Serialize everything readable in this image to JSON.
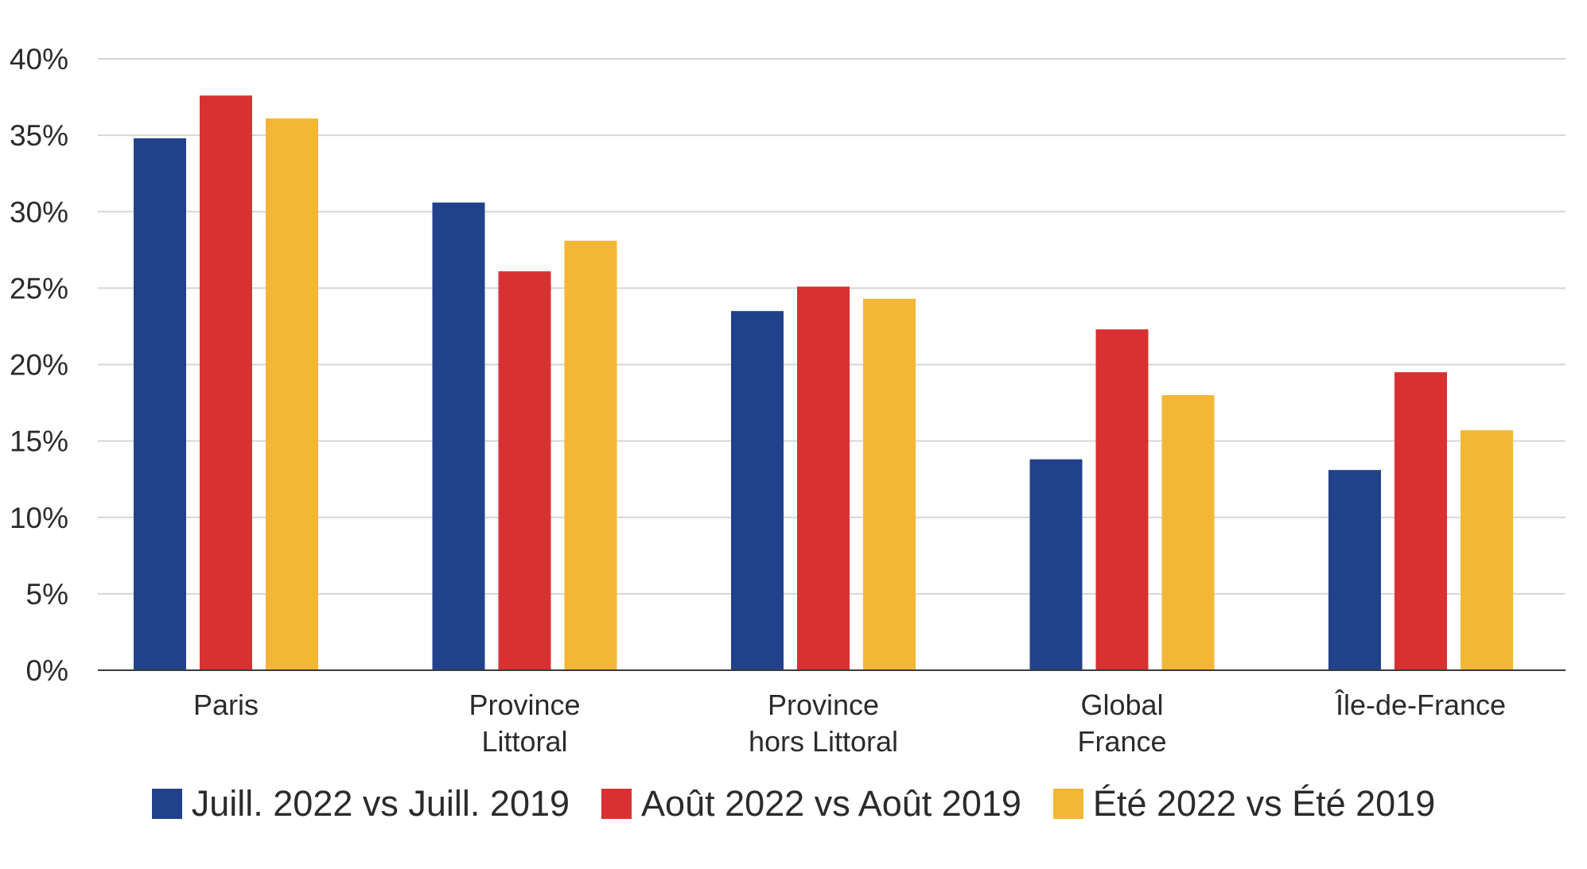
{
  "chart_data": {
    "type": "bar",
    "title": "",
    "xlabel": "",
    "ylabel": "",
    "ylim": [
      0,
      40
    ],
    "yticks": [
      0,
      5,
      10,
      15,
      20,
      25,
      30,
      35,
      40
    ],
    "ytick_labels": [
      "0%",
      "5%",
      "10%",
      "15%",
      "20%",
      "25%",
      "30%",
      "35%",
      "40%"
    ],
    "grid": true,
    "categories": [
      [
        "Paris"
      ],
      [
        "Province",
        "Littoral"
      ],
      [
        "Province",
        "hors Littoral"
      ],
      [
        "Global",
        "France"
      ],
      [
        "Île-de-France"
      ]
    ],
    "series": [
      {
        "name": "Juill. 2022 vs Juill. 2019",
        "color": "#21428a",
        "values": [
          34.8,
          30.6,
          23.5,
          13.8,
          13.1
        ]
      },
      {
        "name": "Août 2022 vs Août 2019",
        "color": "#d93131",
        "values": [
          37.6,
          26.1,
          25.1,
          22.3,
          19.5
        ]
      },
      {
        "name": "Été 2022 vs Été 2019",
        "color": "#f3b735",
        "values": [
          36.1,
          28.1,
          24.3,
          18.0,
          15.7
        ]
      }
    ],
    "legend_position": "bottom"
  }
}
